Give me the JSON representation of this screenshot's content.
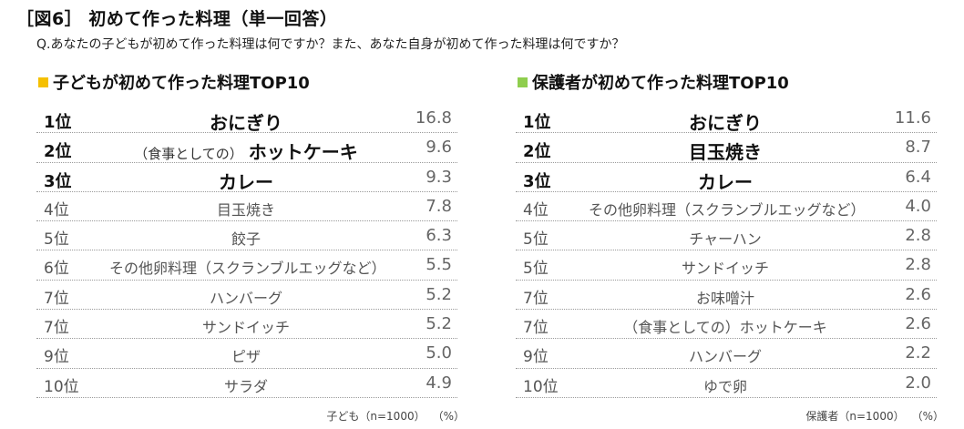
{
  "title": "［図6］ 初めて作った料理（単一回答）",
  "question": "Q.あなたの子どもが初めて作った料理は何ですか？また、あなた自身が初めて作った料理は何ですか？",
  "chart_data": [
    {
      "type": "table",
      "title": "子どもが初めて作った料理TOP10",
      "marker_color": "#f5c000",
      "columns": [
        "rank",
        "dish",
        "percent"
      ],
      "rows": [
        {
          "rank": "1位",
          "pre": "",
          "dish": "おにぎり",
          "value": "16.8"
        },
        {
          "rank": "2位",
          "pre": "（食事としての）",
          "dish": "ホットケーキ",
          "value": "9.6"
        },
        {
          "rank": "3位",
          "pre": "",
          "dish": "カレー",
          "value": "9.3"
        },
        {
          "rank": "4位",
          "pre": "",
          "dish": "目玉焼き",
          "value": "7.8"
        },
        {
          "rank": "5位",
          "pre": "",
          "dish": "餃子",
          "value": "6.3"
        },
        {
          "rank": "6位",
          "pre": "",
          "dish": "その他卵料理（スクランブルエッグなど）",
          "value": "5.5"
        },
        {
          "rank": "7位",
          "pre": "",
          "dish": "ハンバーグ",
          "value": "5.2"
        },
        {
          "rank": "7位",
          "pre": "",
          "dish": "サンドイッチ",
          "value": "5.2"
        },
        {
          "rank": "9位",
          "pre": "",
          "dish": "ピザ",
          "value": "5.0"
        },
        {
          "rank": "10位",
          "pre": "",
          "dish": "サラダ",
          "value": "4.9"
        }
      ],
      "note": "子ども（n=1000）",
      "unit": "（%）"
    },
    {
      "type": "table",
      "title": "保護者が初めて作った料理TOP10",
      "marker_color": "#8fce4e",
      "columns": [
        "rank",
        "dish",
        "percent"
      ],
      "rows": [
        {
          "rank": "1位",
          "pre": "",
          "dish": "おにぎり",
          "value": "11.6"
        },
        {
          "rank": "2位",
          "pre": "",
          "dish": "目玉焼き",
          "value": "8.7"
        },
        {
          "rank": "3位",
          "pre": "",
          "dish": "カレー",
          "value": "6.4"
        },
        {
          "rank": "4位",
          "pre": "",
          "dish": "その他卵料理（スクランブルエッグなど）",
          "value": "4.0"
        },
        {
          "rank": "5位",
          "pre": "",
          "dish": "チャーハン",
          "value": "2.8"
        },
        {
          "rank": "5位",
          "pre": "",
          "dish": "サンドイッチ",
          "value": "2.8"
        },
        {
          "rank": "7位",
          "pre": "",
          "dish": "お味噌汁",
          "value": "2.6"
        },
        {
          "rank": "7位",
          "pre": "",
          "dish": "（食事としての）ホットケーキ",
          "value": "2.6"
        },
        {
          "rank": "9位",
          "pre": "",
          "dish": "ハンバーグ",
          "value": "2.2"
        },
        {
          "rank": "10位",
          "pre": "",
          "dish": "ゆで卵",
          "value": "2.0"
        }
      ],
      "note": "保護者（n=1000）",
      "unit": "（%）"
    }
  ]
}
